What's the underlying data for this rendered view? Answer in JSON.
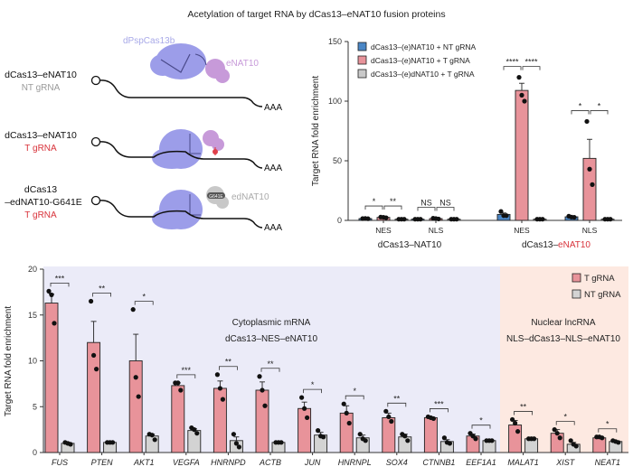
{
  "title": "Acetylation of target RNA by dCas13–eNAT10 fusion proteins",
  "diagram": {
    "protein_label": "dPspCas13b",
    "enzyme_label": "eNAT10",
    "dead_enzyme_label": "edNAT10",
    "mutation_tag": "G641E",
    "polyA": "AAA",
    "rows": [
      {
        "line1": "dCas13–eNAT10",
        "line2": "",
        "grna": "NT gRNA",
        "grna_color": "#9a9a9a"
      },
      {
        "line1": "dCas13–eNAT10",
        "line2": "",
        "grna": "T gRNA",
        "grna_color": "#d8323a"
      },
      {
        "line1": "dCas13",
        "line2": "–edNAT10-G641E",
        "grna": "T gRNA",
        "grna_color": "#d8323a"
      }
    ],
    "colors": {
      "cas13": "#9c9de9",
      "enat10": "#c79ad9",
      "ednat10": "#c8c8c8",
      "acetyl": "#e0404a"
    }
  },
  "chart_data": [
    {
      "type": "bar",
      "ylabel": "Target RNA fold enrichment",
      "ylim": [
        0,
        150
      ],
      "yticks": [
        0,
        50,
        100,
        150
      ],
      "legend_position": "top-left",
      "series": [
        {
          "name": "dCas13–(e)NAT10 + NT gRNA",
          "color": "#4a86c5"
        },
        {
          "name": "dCas13–(e)NAT10 + T gRNA",
          "color": "#e8939a"
        },
        {
          "name": "dCas13–(e)dNAT10 + T gRNA",
          "color": "#c9c9c9"
        }
      ],
      "groups": [
        {
          "label": "NES",
          "values": [
            1.5,
            2.5,
            1
          ],
          "errors": [
            0.3,
            0.5,
            0.2
          ],
          "points": [
            [
              1.5,
              1.6,
              1.4
            ],
            [
              2.8,
              2.6,
              2.2
            ],
            [
              1,
              1,
              1
            ]
          ],
          "sig": [
            "*",
            "**"
          ]
        },
        {
          "label": "NLS",
          "values": [
            1,
            1.5,
            1
          ],
          "errors": [
            0.2,
            0.4,
            0.2
          ],
          "points": [
            [
              1,
              1,
              1
            ],
            [
              1.8,
              1.5,
              1.2
            ],
            [
              1,
              1,
              1
            ]
          ],
          "sig": [
            "NS",
            "NS"
          ]
        },
        {
          "label": "NES",
          "values": [
            5,
            109,
            1
          ],
          "errors": [
            1.2,
            6,
            0.2
          ],
          "points": [
            [
              7.5,
              4,
              4
            ],
            [
              120,
              105,
              100
            ],
            [
              1,
              1,
              1
            ]
          ],
          "sig": [
            "****",
            "****"
          ]
        },
        {
          "label": "NLS",
          "values": [
            3,
            52,
            1
          ],
          "errors": [
            0.6,
            16,
            0.2
          ],
          "points": [
            [
              3.5,
              2.8,
              2.6
            ],
            [
              83,
              43,
              30
            ],
            [
              1,
              1,
              1
            ]
          ],
          "sig": [
            "*",
            "*"
          ]
        }
      ],
      "group_labels": [
        {
          "text": "dCas13–NAT10",
          "highlight": ""
        },
        {
          "text": "dCas13–",
          "highlight": "eNAT10"
        }
      ],
      "highlight_color": "#d8323a"
    },
    {
      "type": "bar",
      "ylabel": "Target RNA fold enrichment",
      "ylim": [
        0,
        20
      ],
      "yticks": [
        0,
        5,
        10,
        15,
        20
      ],
      "legend_position": "top-right",
      "series": [
        {
          "name": "T gRNA",
          "color": "#e8939a"
        },
        {
          "name": "NT gRNA",
          "color": "#d3d3d3"
        }
      ],
      "regions": [
        {
          "line1": "Cytoplasmic mRNA",
          "line2": "dCas13–NES–eNAT10",
          "color": "#ebebf8"
        },
        {
          "line1": "Nuclear lncRNA",
          "line2": "NLS–dCas13–NLS–eNAT10",
          "color": "#fde9e1"
        }
      ],
      "categories": [
        "FUS",
        "PTEN",
        "AKT1",
        "VEGFA",
        "HNRNPD",
        "ACTB",
        "JUN",
        "HNRNPL",
        "SOX4",
        "CTNNB1",
        "EEF1A1",
        "MALAT1",
        "XIST",
        "NEAT1"
      ],
      "t_values": [
        16.3,
        12.0,
        10.0,
        7.3,
        7.0,
        6.8,
        4.8,
        4.3,
        3.8,
        3.8,
        1.8,
        3.0,
        2.1,
        1.6
      ],
      "t_errors": [
        1.0,
        2.3,
        2.9,
        0.3,
        0.8,
        0.9,
        0.7,
        0.8,
        0.5,
        0.1,
        0.2,
        0.5,
        0.4,
        0.05
      ],
      "t_points": [
        [
          17.6,
          17.2,
          14.1
        ],
        [
          16.5,
          10.6,
          9.1
        ],
        [
          15.6,
          8.2,
          6.1
        ],
        [
          7.6,
          7.6,
          6.8
        ],
        [
          8.5,
          7.0,
          5.8
        ],
        [
          8.3,
          6.8,
          5.1
        ],
        [
          6.0,
          4.8,
          3.8
        ],
        [
          5.3,
          4.3,
          3.2
        ],
        [
          4.5,
          3.9,
          3.4
        ],
        [
          3.9,
          3.8,
          3.7
        ],
        [
          2.1,
          1.8,
          1.5
        ],
        [
          3.6,
          3.2,
          2.3
        ],
        [
          2.5,
          2.1,
          1.6
        ],
        [
          1.7,
          1.7,
          1.6
        ]
      ],
      "nt_values": [
        1.0,
        1.1,
        1.8,
        2.4,
        1.3,
        1.1,
        1.9,
        1.6,
        1.7,
        1.2,
        1.3,
        1.5,
        0.9,
        1.2
      ],
      "nt_errors": [
        0.1,
        0.05,
        0.2,
        0.2,
        0.4,
        0.05,
        0.3,
        0.3,
        0.3,
        0.2,
        0.05,
        0.05,
        0.2,
        0.05
      ],
      "nt_points": [
        [
          1.1,
          1.0,
          0.9
        ],
        [
          1.1,
          1.1,
          1.1
        ],
        [
          2.0,
          1.9,
          1.4
        ],
        [
          2.7,
          2.5,
          2.1
        ],
        [
          2.0,
          1.0,
          0.6
        ],
        [
          1.1,
          1.1,
          1.1
        ],
        [
          2.4,
          1.8,
          1.7
        ],
        [
          2.0,
          1.5,
          1.3
        ],
        [
          2.0,
          1.8,
          1.3
        ],
        [
          1.6,
          1.1,
          1.0
        ],
        [
          1.3,
          1.3,
          1.3
        ],
        [
          1.5,
          1.5,
          1.5
        ],
        [
          1.3,
          0.9,
          0.7
        ],
        [
          1.3,
          1.2,
          1.1
        ]
      ],
      "sig": [
        "***",
        "**",
        "*",
        "***",
        "**",
        "**",
        "*",
        "*",
        "**",
        "***",
        "*",
        "**",
        "*",
        "*"
      ]
    }
  ]
}
